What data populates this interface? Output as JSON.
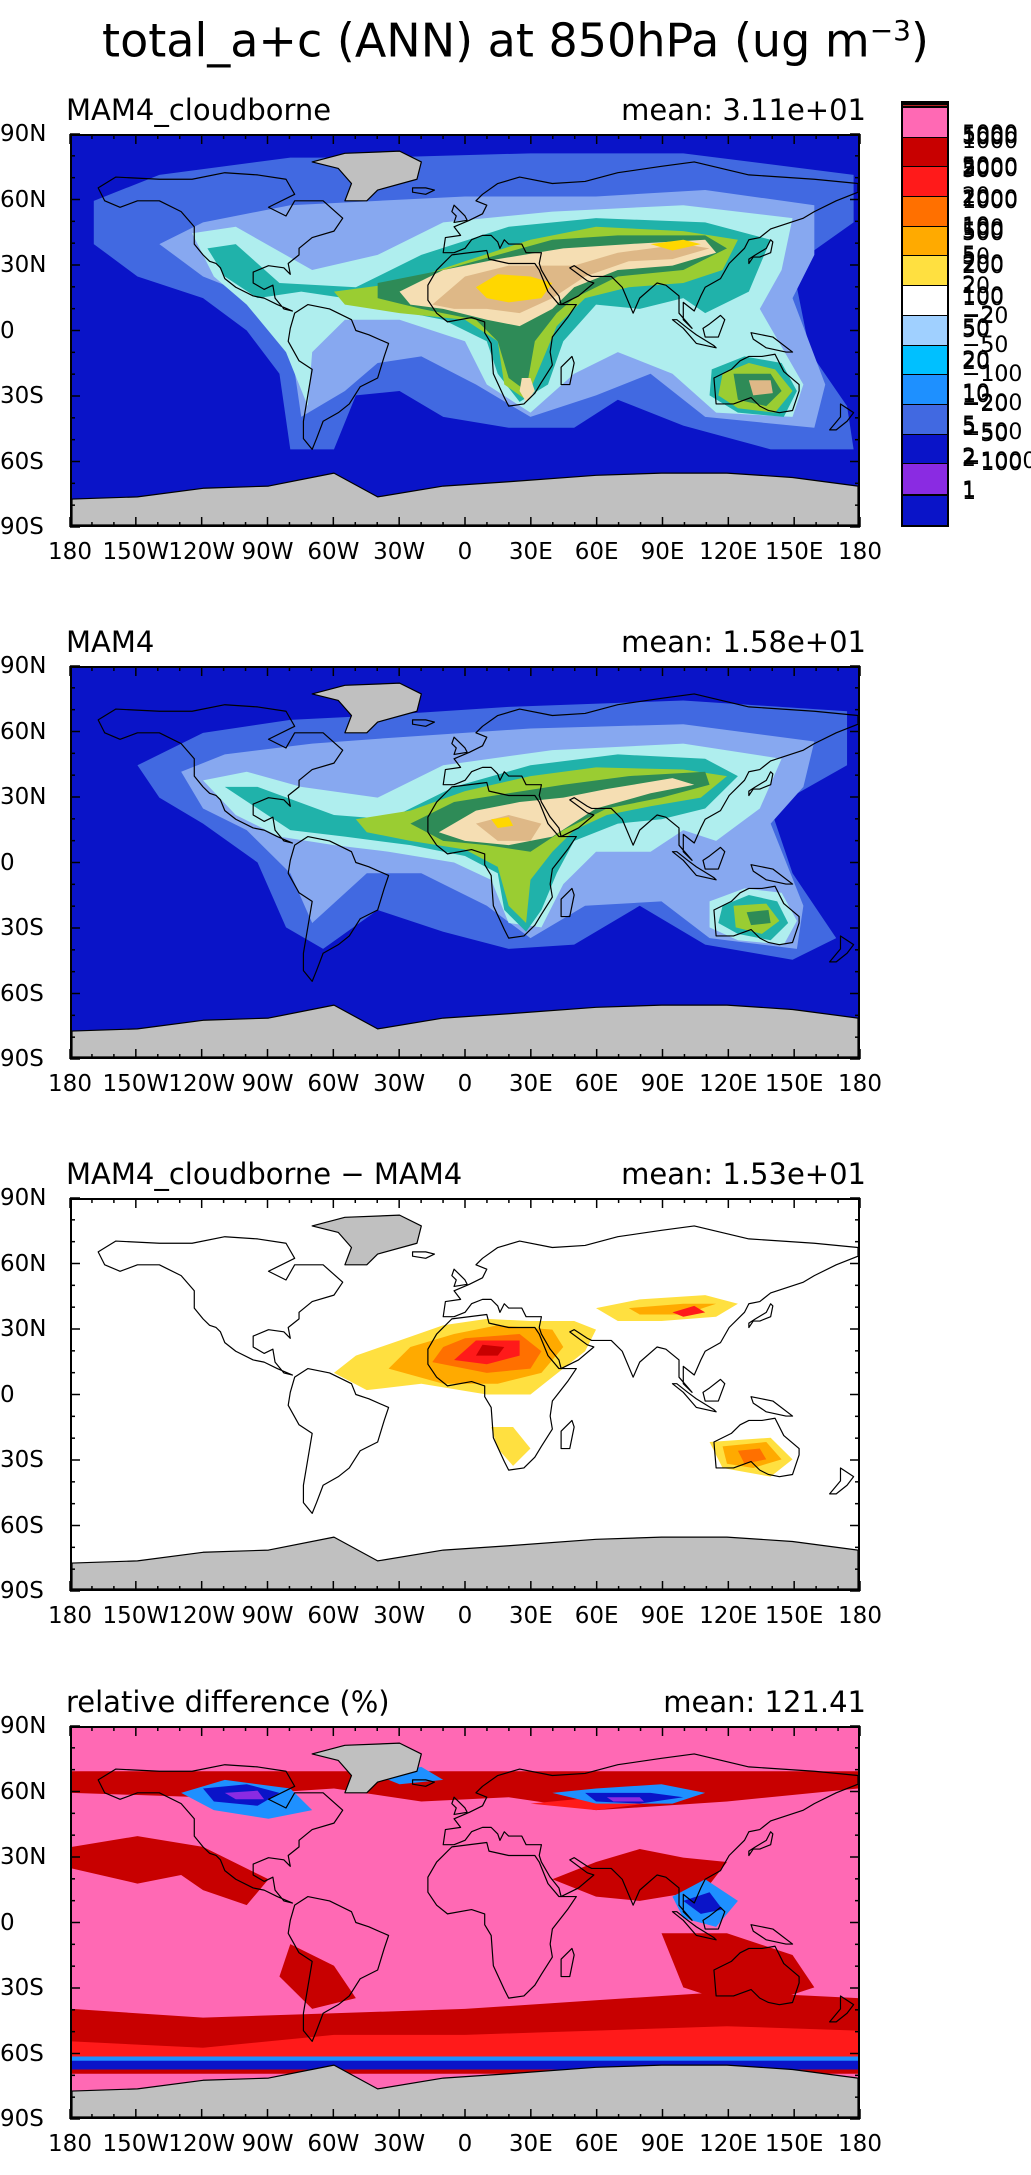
{
  "figure": {
    "title_main": "total_a+c (ANN) at 850hPa (ug m",
    "title_exp": "−3",
    "title_close": ")"
  },
  "axes": {
    "lat_labels": [
      "90N",
      "60N",
      "30N",
      "0",
      "30S",
      "60S",
      "90S"
    ],
    "lon_labels": [
      "180",
      "150W",
      "120W",
      "90W",
      "60W",
      "30W",
      "0",
      "30E",
      "60E",
      "90E",
      "120E",
      "150E",
      "180"
    ]
  },
  "panels": [
    {
      "name": "MAM4_cloudborne",
      "mean": "mean: 3.11e+01",
      "background_color": "#0a14c8",
      "legend": {
        "colors": [
          "#b22222",
          "#ff4500",
          "#ffa500",
          "#ffd700",
          "#deb887",
          "#f5deb3",
          "#2e8b57",
          "#9acd32",
          "#20b2aa",
          "#afeeee",
          "#87a8f0",
          "#4169e1",
          "#0a14c8"
        ],
        "labels": [
          "5000",
          "2000",
          "1000",
          "500",
          "200",
          "100",
          "50",
          "20",
          "10",
          "5",
          "2",
          "1"
        ]
      }
    },
    {
      "name": "MAM4",
      "mean": "mean: 1.58e+01",
      "background_color": "#0a14c8",
      "legend": {
        "colors": [
          "#b22222",
          "#ff4500",
          "#ffa500",
          "#ffd700",
          "#deb887",
          "#f5deb3",
          "#2e8b57",
          "#9acd32",
          "#20b2aa",
          "#afeeee",
          "#87a8f0",
          "#4169e1",
          "#0a14c8"
        ],
        "labels": [
          "5000",
          "2000",
          "1000",
          "500",
          "200",
          "100",
          "50",
          "20",
          "10",
          "5",
          "2",
          "1"
        ]
      }
    },
    {
      "name": "MAM4_cloudborne − MAM4",
      "mean": "mean: 1.53e+01",
      "background_color": "#ffffff",
      "legend": {
        "colors": [
          "#ff69b4",
          "#c80000",
          "#ff1a1a",
          "#ff7000",
          "#ffaa00",
          "#ffe040",
          "#ffffff",
          "#a0d0ff",
          "#00c0ff",
          "#1e90ff",
          "#4169e1",
          "#0a14c8",
          "#8a2be2"
        ],
        "labels": [
          "1000",
          "500",
          "200",
          "100",
          "50",
          "20",
          "−20",
          "−50",
          "−100",
          "−200",
          "−500",
          "−1000"
        ]
      }
    },
    {
      "name": "relative difference (%)",
      "mean": "mean: 121.41",
      "background_color": "#ff69b4",
      "legend": {
        "colors": [
          "#ff69b4",
          "#c80000",
          "#ff1a1a",
          "#ff7000",
          "#ffaa00",
          "#ffe040",
          "#ffffff",
          "#a0d0ff",
          "#00c0ff",
          "#1e90ff",
          "#4169e1",
          "#0a14c8",
          "#8a2be2"
        ],
        "labels": [
          "100",
          "50",
          "20",
          "10",
          "5",
          "2",
          "−2",
          "−5",
          "−10",
          "−20",
          "−50",
          "−100"
        ]
      }
    }
  ]
}
